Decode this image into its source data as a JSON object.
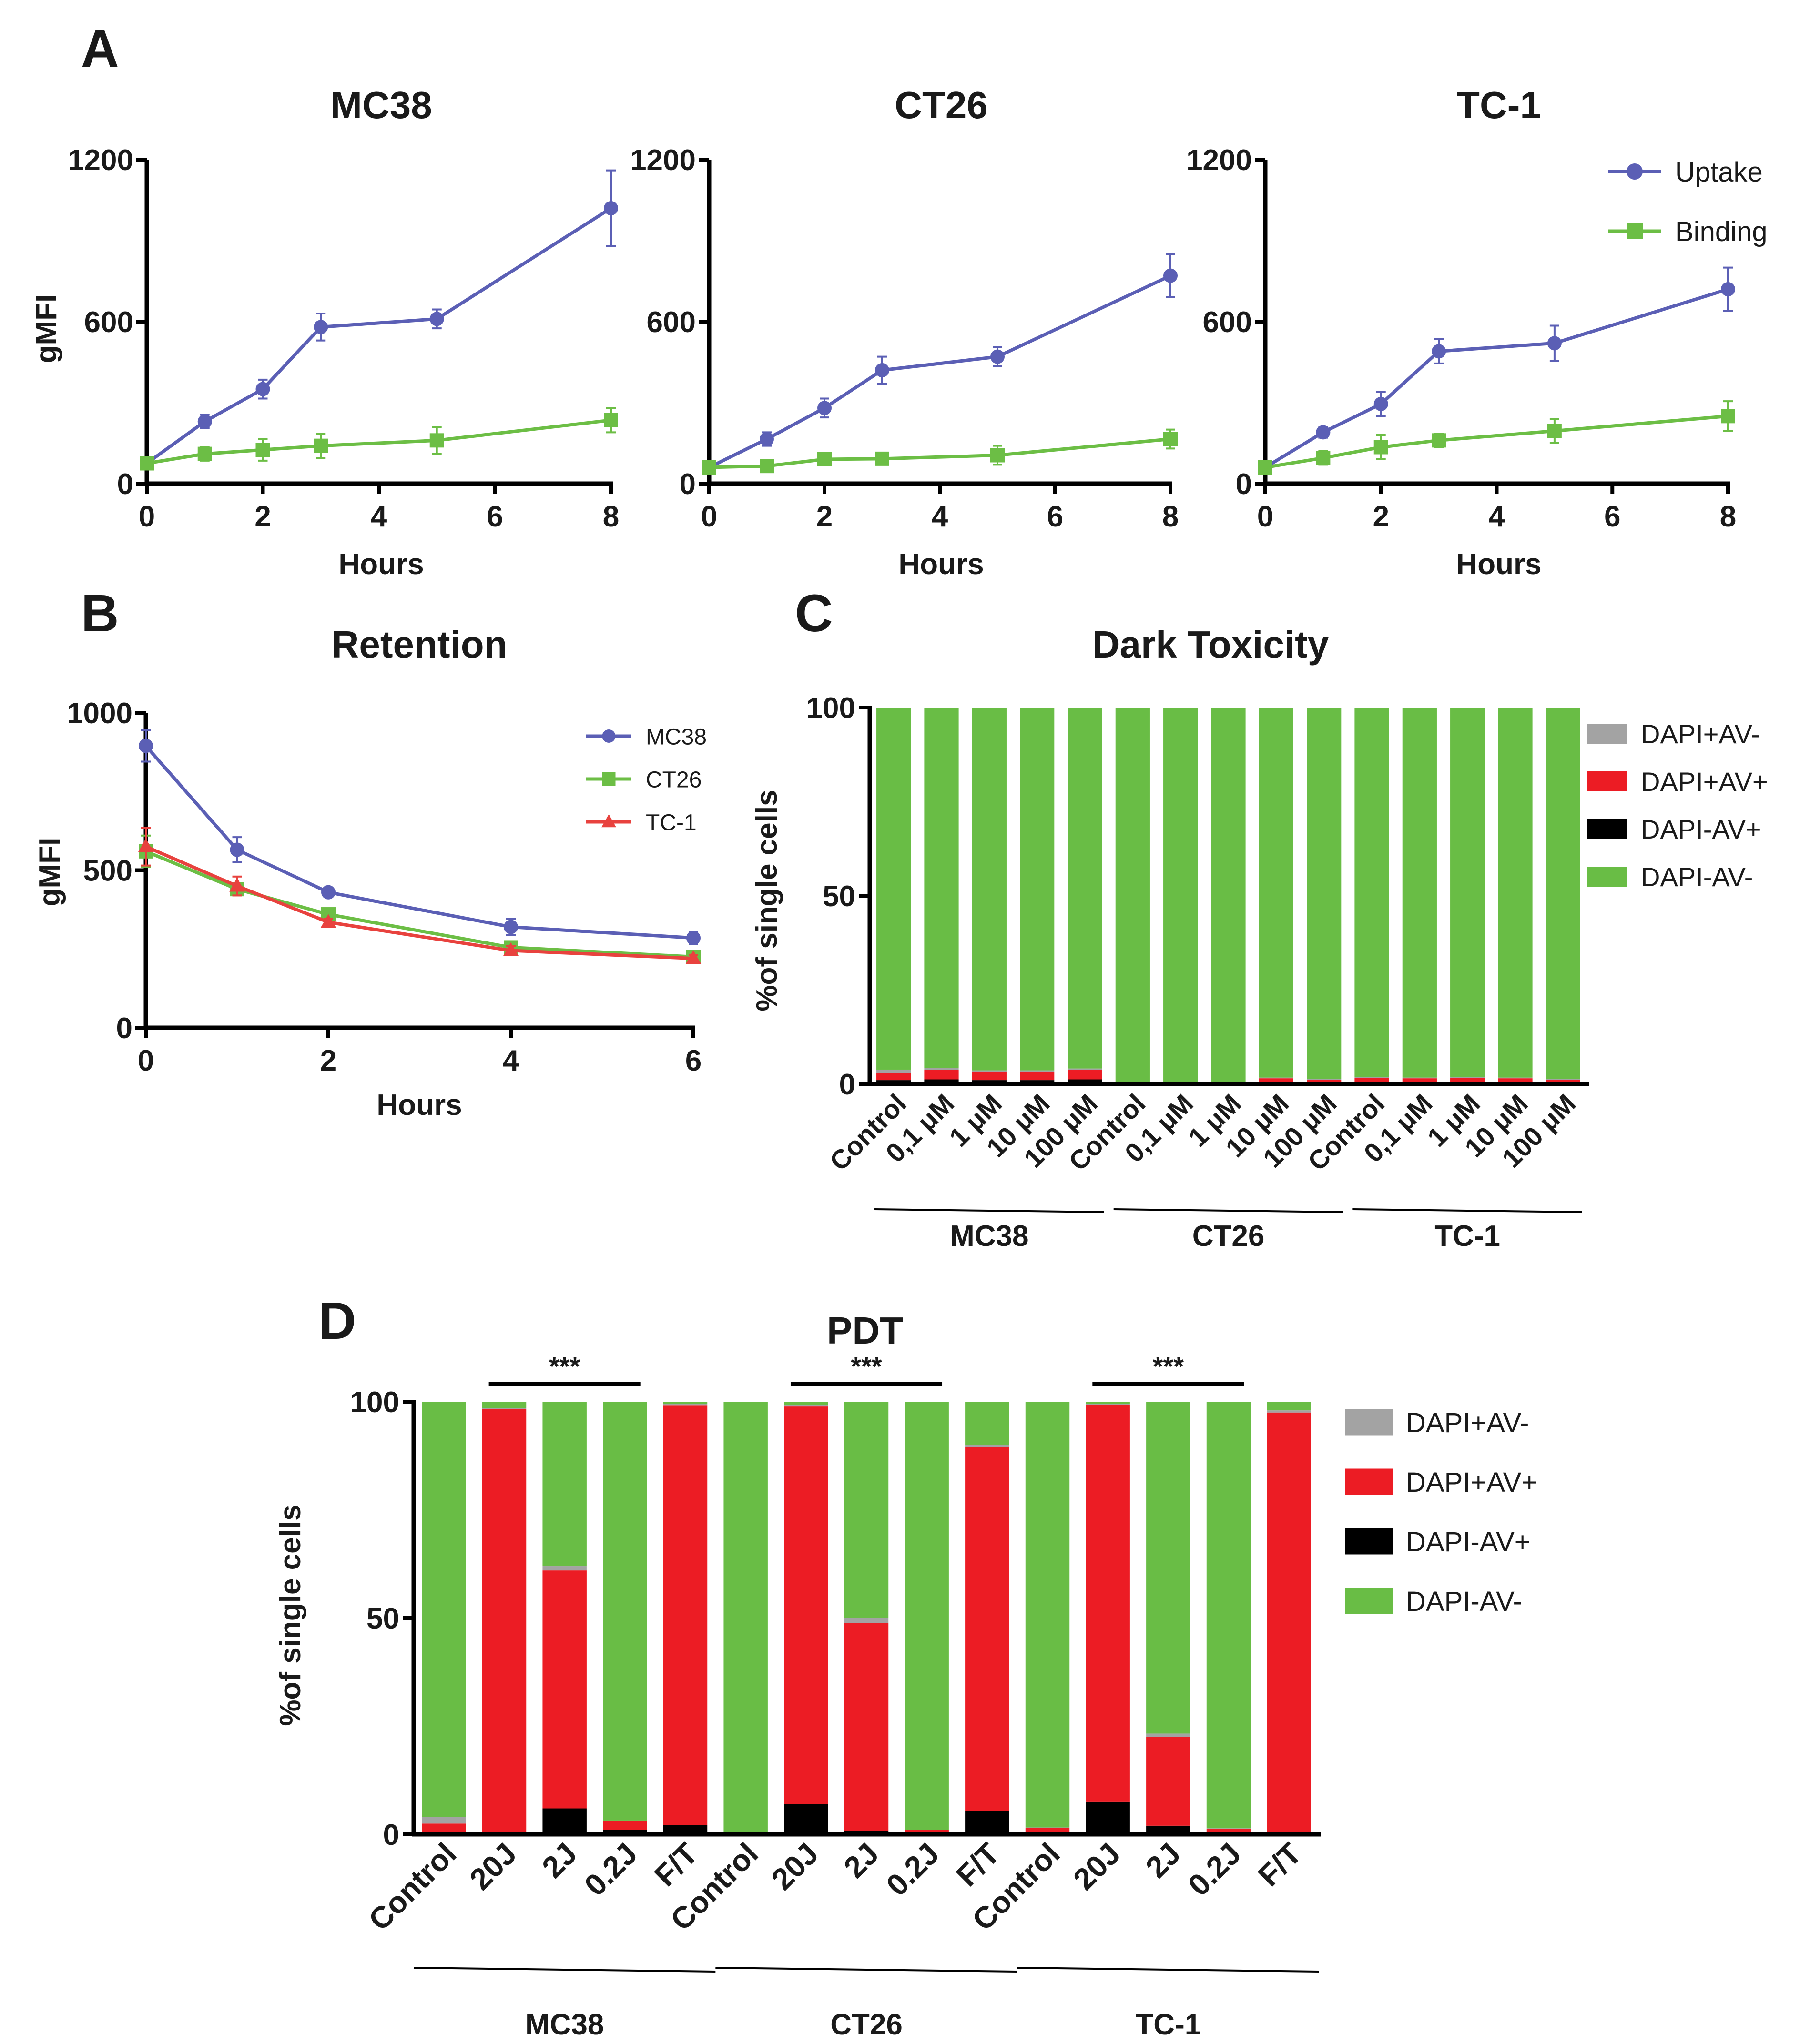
{
  "panel_labels": [
    "A",
    "B",
    "C",
    "D"
  ],
  "colors": {
    "uptake": "#5b5fb5",
    "binding": "#6cbe45",
    "mc38": "#5b5fb5",
    "ct26": "#6cbe45",
    "tc1": "#e8423e",
    "dapi_pos_av_neg": "#a3a3a3",
    "dapi_pos_av_pos": "#ec1c24",
    "dapi_neg_av_pos": "#000000",
    "dapi_neg_av_neg": "#69bd45"
  },
  "chart_data": [
    {
      "id": "A1",
      "type": "line",
      "title": "MC38",
      "xlabel": "Hours",
      "ylabel": "gMFI",
      "xlim": [
        0,
        8
      ],
      "ylim": [
        0,
        1200
      ],
      "xticks": [
        "0",
        "2",
        "4",
        "6",
        "8"
      ],
      "yticks": [
        "0",
        "600",
        "1200"
      ],
      "series": [
        {
          "name": "Uptake",
          "marker": "circle",
          "x": [
            0,
            1,
            2,
            3,
            5,
            8
          ],
          "y": [
            75,
            230,
            350,
            580,
            610,
            1020
          ],
          "err": [
            10,
            25,
            35,
            50,
            35,
            140
          ]
        },
        {
          "name": "Binding",
          "marker": "square",
          "x": [
            0,
            1,
            2,
            3,
            5,
            8
          ],
          "y": [
            75,
            110,
            125,
            140,
            160,
            235
          ],
          "err": [
            10,
            25,
            40,
            45,
            50,
            45
          ]
        }
      ]
    },
    {
      "id": "A2",
      "type": "line",
      "title": "CT26",
      "xlabel": "Hours",
      "ylabel": "",
      "xlim": [
        0,
        8
      ],
      "ylim": [
        0,
        1200
      ],
      "xticks": [
        "0",
        "2",
        "4",
        "6",
        "8"
      ],
      "yticks": [
        "0",
        "600",
        "1200"
      ],
      "series": [
        {
          "name": "Uptake",
          "marker": "circle",
          "x": [
            0,
            1,
            2,
            3,
            5,
            8
          ],
          "y": [
            60,
            165,
            280,
            420,
            470,
            770
          ],
          "err": [
            10,
            25,
            35,
            50,
            35,
            80
          ]
        },
        {
          "name": "Binding",
          "marker": "square",
          "x": [
            0,
            1,
            2,
            3,
            5,
            8
          ],
          "y": [
            60,
            65,
            90,
            92,
            105,
            165
          ],
          "err": [
            10,
            20,
            15,
            15,
            35,
            35
          ]
        }
      ]
    },
    {
      "id": "A3",
      "type": "line",
      "title": "TC-1",
      "xlabel": "Hours",
      "ylabel": "",
      "xlim": [
        0,
        8
      ],
      "ylim": [
        0,
        1200
      ],
      "xticks": [
        "0",
        "2",
        "4",
        "6",
        "8"
      ],
      "yticks": [
        "0",
        "600",
        "1200"
      ],
      "legend": "top-right",
      "series": [
        {
          "name": "Uptake",
          "marker": "circle",
          "x": [
            0,
            1,
            2,
            3,
            5,
            8
          ],
          "y": [
            60,
            190,
            295,
            490,
            520,
            720
          ],
          "err": [
            10,
            20,
            45,
            45,
            65,
            80
          ]
        },
        {
          "name": "Binding",
          "marker": "square",
          "x": [
            0,
            1,
            2,
            3,
            5,
            8
          ],
          "y": [
            60,
            95,
            135,
            160,
            195,
            250
          ],
          "err": [
            10,
            25,
            45,
            25,
            45,
            55
          ]
        }
      ]
    },
    {
      "id": "B",
      "type": "line",
      "title": "Retention",
      "xlabel": "Hours",
      "ylabel": "gMFI",
      "xlim": [
        0,
        6
      ],
      "ylim": [
        0,
        1000
      ],
      "xticks": [
        "0",
        "2",
        "4",
        "6"
      ],
      "yticks": [
        "0",
        "500",
        "1000"
      ],
      "legend": "top-right",
      "series": [
        {
          "name": "MC38",
          "marker": "circle",
          "x": [
            0,
            1,
            2,
            4,
            6
          ],
          "y": [
            895,
            565,
            430,
            320,
            285
          ],
          "err": [
            50,
            40,
            10,
            25,
            20
          ]
        },
        {
          "name": "CT26",
          "marker": "square",
          "x": [
            0,
            1,
            2,
            4,
            6
          ],
          "y": [
            560,
            440,
            360,
            255,
            225
          ],
          "err": [
            50,
            20,
            10,
            15,
            10
          ]
        },
        {
          "name": "TC-1",
          "marker": "triangle",
          "x": [
            0,
            1,
            2,
            4,
            6
          ],
          "y": [
            575,
            450,
            335,
            245,
            220
          ],
          "err": [
            60,
            30,
            10,
            15,
            10
          ]
        }
      ]
    },
    {
      "id": "C",
      "type": "bar",
      "stacked": true,
      "title": "Dark Toxicity",
      "xlabel": "",
      "ylabel": "%of single cells",
      "ylim": [
        0,
        100
      ],
      "yticks": [
        "0",
        "50",
        "100"
      ],
      "legend": "right",
      "categories": [
        "Control",
        "0,1 μM",
        "1 μM",
        "10 μM",
        "100 μM",
        "Control",
        "0,1 μM",
        "1 μM",
        "10 μM",
        "100 μM",
        "Control",
        "0,1 μM",
        "1 μM",
        "10 μM",
        "100 μM"
      ],
      "groups": [
        {
          "label": "MC38",
          "start": 0,
          "end": 4
        },
        {
          "label": "CT26",
          "start": 5,
          "end": 9
        },
        {
          "label": "TC-1",
          "start": 10,
          "end": 14
        }
      ],
      "series": [
        {
          "name": "DAPI-AV+",
          "values": [
            1.0,
            1.2,
            1.0,
            1.0,
            1.2,
            0.2,
            0.2,
            0.2,
            0.3,
            0.3,
            0.3,
            0.3,
            0.3,
            0.3,
            0.3
          ]
        },
        {
          "name": "DAPI+AV+",
          "values": [
            2.0,
            2.5,
            2.2,
            2.2,
            2.5,
            0.3,
            0.3,
            0.3,
            1.2,
            0.8,
            1.3,
            1.2,
            1.3,
            1.2,
            0.8
          ]
        },
        {
          "name": "DAPI+AV-",
          "values": [
            0.8,
            0.5,
            0.4,
            0.4,
            0.4,
            0.1,
            0.1,
            0.1,
            0.2,
            0.2,
            0.2,
            0.2,
            0.2,
            0.2,
            0.2
          ]
        },
        {
          "name": "DAPI-AV-",
          "values": [
            96.2,
            95.8,
            96.4,
            96.4,
            95.9,
            99.4,
            99.4,
            99.4,
            98.3,
            98.7,
            98.2,
            98.3,
            98.2,
            98.3,
            98.7
          ]
        }
      ],
      "legend_order": [
        "DAPI+AV-",
        "DAPI+AV+",
        "DAPI-AV+",
        "DAPI-AV-"
      ]
    },
    {
      "id": "D",
      "type": "bar",
      "stacked": true,
      "title": "PDT",
      "xlabel": "",
      "ylabel": "%of single cells",
      "ylim": [
        0,
        100
      ],
      "yticks": [
        "0",
        "50",
        "100"
      ],
      "legend": "right",
      "categories": [
        "Control",
        "20J",
        "2J",
        "0.2J",
        "F/T",
        "Control",
        "20J",
        "2J",
        "0.2J",
        "F/T",
        "Control",
        "20J",
        "2J",
        "0.2J",
        "F/T"
      ],
      "groups": [
        {
          "label": "MC38",
          "start": 0,
          "end": 4
        },
        {
          "label": "CT26",
          "start": 5,
          "end": 9
        },
        {
          "label": "TC-1",
          "start": 10,
          "end": 14
        }
      ],
      "significance": [
        {
          "label": "***",
          "from": 1,
          "to": 3
        },
        {
          "label": "***",
          "from": 6,
          "to": 8
        },
        {
          "label": "***",
          "from": 11,
          "to": 13
        }
      ],
      "series": [
        {
          "name": "DAPI-AV+",
          "values": [
            0.5,
            0.3,
            6.0,
            1.0,
            2.2,
            0.2,
            7.0,
            0.8,
            0.3,
            5.5,
            0.3,
            7.5,
            2.0,
            0.3,
            0.3
          ]
        },
        {
          "name": "DAPI+AV+",
          "values": [
            2.0,
            98.0,
            55.0,
            2.0,
            97.0,
            0.2,
            92.0,
            48.0,
            0.7,
            84.0,
            1.2,
            91.8,
            20.5,
            1.0,
            97.2
          ]
        },
        {
          "name": "DAPI+AV-",
          "values": [
            1.5,
            0.2,
            1.0,
            0.2,
            0.3,
            0.1,
            0.3,
            1.2,
            0.1,
            0.5,
            0.1,
            0.2,
            0.8,
            0.1,
            0.5
          ]
        },
        {
          "name": "DAPI-AV-",
          "values": [
            96.0,
            1.5,
            38.0,
            96.8,
            0.5,
            99.5,
            0.7,
            50.0,
            98.9,
            10.0,
            98.4,
            0.5,
            76.7,
            98.6,
            2.0
          ]
        }
      ],
      "legend_order": [
        "DAPI+AV-",
        "DAPI+AV+",
        "DAPI-AV+",
        "DAPI-AV-"
      ]
    }
  ]
}
